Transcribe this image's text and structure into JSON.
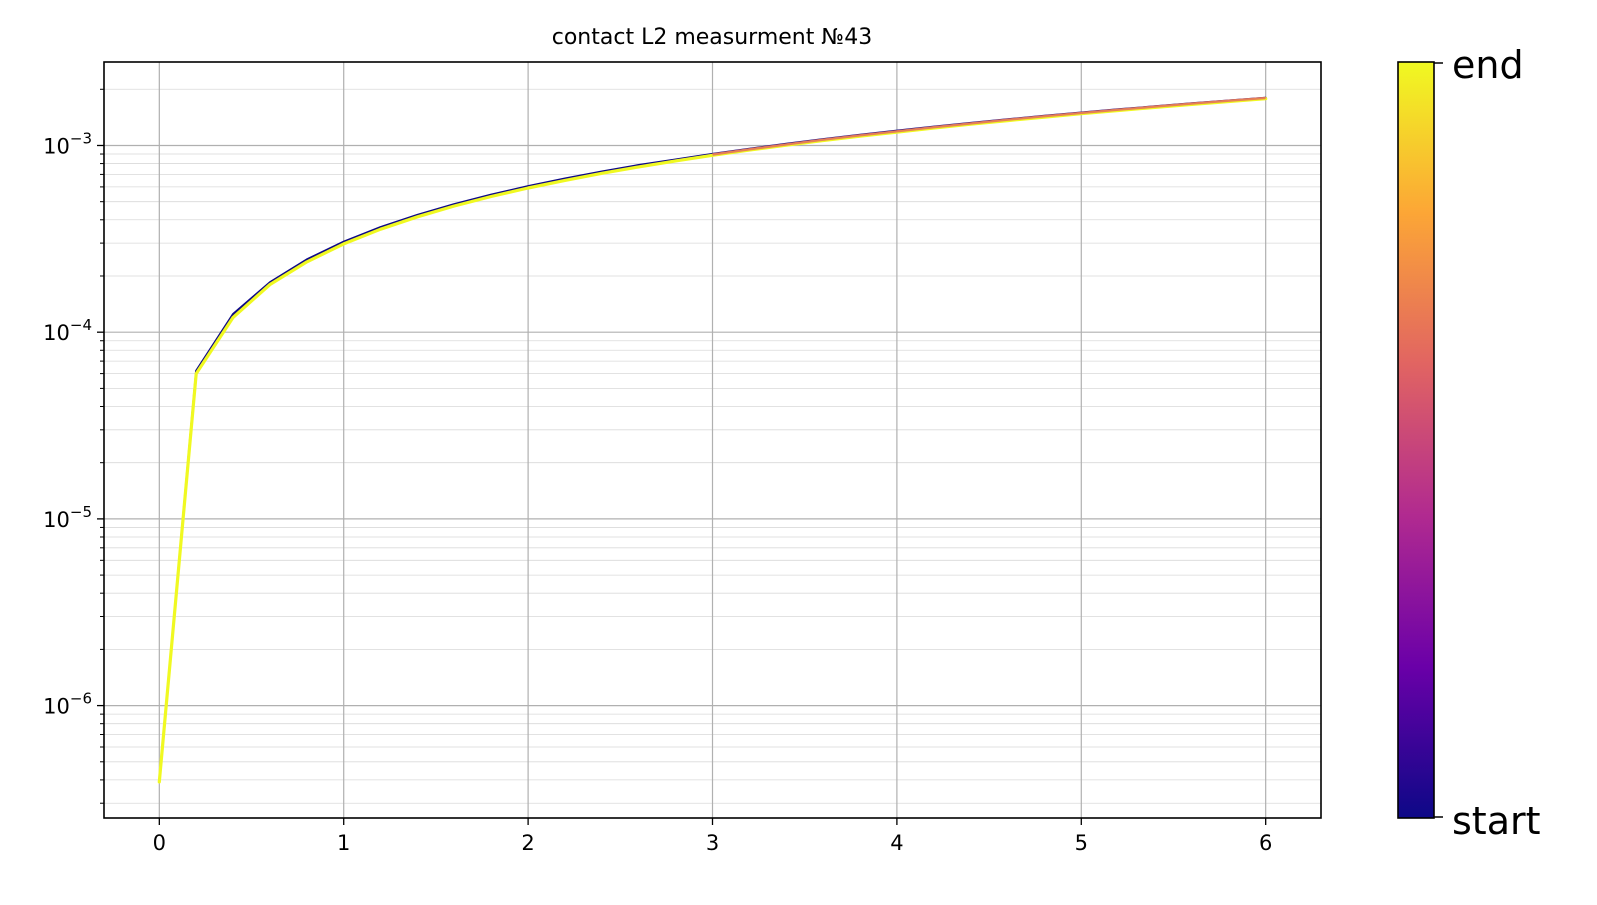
{
  "chart_data": {
    "type": "line",
    "title": "contact L2 measurment №43",
    "xlabel": "",
    "ylabel": "",
    "xlim": [
      -0.3,
      6.3
    ],
    "ylim": [
      2.5e-07,
      0.0028
    ],
    "yscale": "log",
    "grid": true,
    "x_ticks": [
      0,
      1,
      2,
      3,
      4,
      5,
      6
    ],
    "x_tick_labels": [
      "0",
      "1",
      "2",
      "3",
      "4",
      "5",
      "6"
    ],
    "y_major_ticks": [
      1e-06,
      1e-05,
      0.0001,
      0.001
    ],
    "y_tick_labels": [
      {
        "base": "10",
        "exp": "−6"
      },
      {
        "base": "10",
        "exp": "−5"
      },
      {
        "base": "10",
        "exp": "−4"
      },
      {
        "base": "10",
        "exp": "−3"
      }
    ],
    "x": [
      0.0,
      0.2,
      0.4,
      0.6,
      0.8,
      1.0,
      1.2,
      1.4,
      1.6,
      1.8,
      2.0,
      2.2,
      2.4,
      2.6,
      2.8,
      3.0,
      3.2,
      3.4,
      3.6,
      3.8,
      4.0,
      4.2,
      4.4,
      4.6,
      4.8,
      5.0,
      5.2,
      5.4,
      5.6,
      5.8,
      6.0
    ],
    "series": [
      {
        "values": [
          3.9e-07,
          6.2e-05,
          0.000125,
          0.000185,
          0.000245,
          0.000305,
          0.000365,
          0.000425,
          0.000485,
          0.000545,
          0.000605,
          0.000665,
          0.000725,
          0.000785,
          0.00084,
          0.0009,
          0.00096,
          0.00102,
          0.00108,
          0.00114,
          0.0012,
          0.00126,
          0.00132,
          0.00138,
          0.00144,
          0.0015,
          0.00156,
          0.00162,
          0.00168,
          0.00174,
          0.0018
        ]
      },
      {
        "values": [
          3.9e-07,
          6e-05,
          0.00012,
          0.00018,
          0.000238,
          0.000297,
          0.000356,
          0.000415,
          0.000474,
          0.000533,
          0.000592,
          0.00065,
          0.00071,
          0.000768,
          0.000827,
          0.000886,
          0.000945,
          0.001004,
          0.001063,
          0.001122,
          0.00118,
          0.00124,
          0.0013,
          0.00136,
          0.00142,
          0.00148,
          0.00154,
          0.0016,
          0.00166,
          0.00172,
          0.00178
        ]
      }
    ],
    "colormap": [
      "#0d0887",
      "#6a00a8",
      "#b12a90",
      "#e16462",
      "#fca636",
      "#f0f921"
    ],
    "colorbar": {
      "top_label": "end",
      "bottom_label": "start"
    }
  }
}
